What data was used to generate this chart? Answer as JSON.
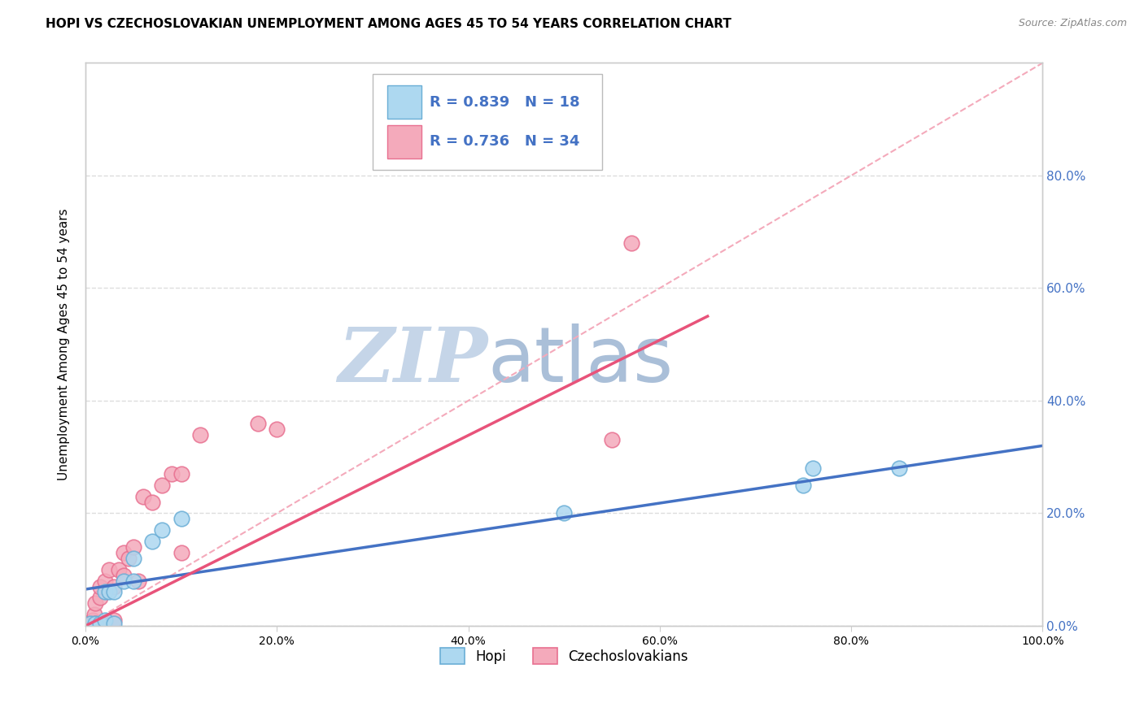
{
  "title": "HOPI VS CZECHOSLOVAKIAN UNEMPLOYMENT AMONG AGES 45 TO 54 YEARS CORRELATION CHART",
  "source": "Source: ZipAtlas.com",
  "ylabel": "Unemployment Among Ages 45 to 54 years",
  "xlim": [
    0,
    1.0
  ],
  "ylim": [
    0,
    1.0
  ],
  "xticks": [
    0.0,
    0.2,
    0.4,
    0.6,
    0.8,
    1.0
  ],
  "yticks": [
    0.0,
    0.2,
    0.4,
    0.6,
    0.8
  ],
  "xtick_labels": [
    "0.0%",
    "20.0%",
    "40.0%",
    "60.0%",
    "80.0%",
    "100.0%"
  ],
  "ytick_labels": [
    "0.0%",
    "20.0%",
    "40.0%",
    "60.0%",
    "80.0%"
  ],
  "hopi_color": "#ADD8F0",
  "czech_color": "#F4AABB",
  "hopi_edge_color": "#6AAED6",
  "czech_edge_color": "#E87090",
  "hopi_line_color": "#4472C4",
  "czech_line_color": "#E8537A",
  "diagonal_color": "#F4AABB",
  "R_hopi": 0.839,
  "N_hopi": 18,
  "R_czech": 0.736,
  "N_czech": 34,
  "watermark_zip": "ZIP",
  "watermark_atlas": "atlas",
  "watermark_color_zip": "#C5D5E8",
  "watermark_color_atlas": "#AABFD8",
  "hopi_scatter_x": [
    0.005,
    0.01,
    0.015,
    0.02,
    0.02,
    0.025,
    0.03,
    0.03,
    0.04,
    0.05,
    0.05,
    0.07,
    0.08,
    0.1,
    0.5,
    0.75,
    0.76,
    0.85
  ],
  "hopi_scatter_y": [
    0.005,
    0.005,
    0.005,
    0.01,
    0.06,
    0.06,
    0.005,
    0.06,
    0.08,
    0.08,
    0.12,
    0.15,
    0.17,
    0.19,
    0.2,
    0.25,
    0.28,
    0.28
  ],
  "czech_scatter_x": [
    0.002,
    0.003,
    0.004,
    0.005,
    0.006,
    0.007,
    0.008,
    0.009,
    0.01,
    0.01,
    0.015,
    0.015,
    0.02,
    0.02,
    0.025,
    0.03,
    0.03,
    0.035,
    0.04,
    0.04,
    0.045,
    0.05,
    0.055,
    0.06,
    0.07,
    0.08,
    0.09,
    0.1,
    0.1,
    0.12,
    0.18,
    0.2,
    0.55,
    0.57
  ],
  "czech_scatter_y": [
    0.005,
    0.005,
    0.005,
    0.005,
    0.005,
    0.005,
    0.01,
    0.02,
    0.005,
    0.04,
    0.05,
    0.07,
    0.005,
    0.08,
    0.1,
    0.01,
    0.07,
    0.1,
    0.09,
    0.13,
    0.12,
    0.14,
    0.08,
    0.23,
    0.22,
    0.25,
    0.27,
    0.13,
    0.27,
    0.34,
    0.36,
    0.35,
    0.33,
    0.68
  ],
  "hopi_line_x": [
    0.0,
    1.0
  ],
  "hopi_line_y": [
    0.065,
    0.32
  ],
  "czech_line_x": [
    0.0,
    0.65
  ],
  "czech_line_y": [
    0.0,
    0.55
  ],
  "background_color": "#FFFFFF",
  "grid_color": "#DDDDDD",
  "axis_color": "#CCCCCC",
  "right_ytick_color": "#4472C4",
  "legend_fontsize": 13,
  "title_fontsize": 11,
  "label_fontsize": 11
}
